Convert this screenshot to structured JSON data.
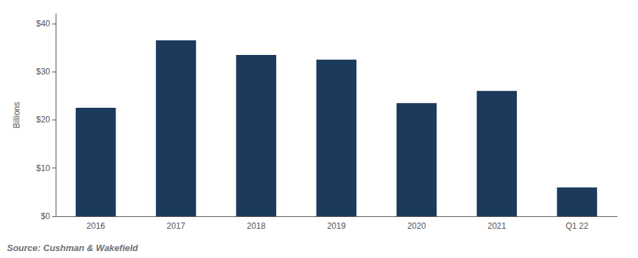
{
  "chart_data": {
    "type": "bar",
    "categories": [
      "2016",
      "2017",
      "2018",
      "2019",
      "2020",
      "2021",
      "Q1 22"
    ],
    "values": [
      22.5,
      36.5,
      33.5,
      32.5,
      23.5,
      26.0,
      6.0
    ],
    "color": "#1b3a5c",
    "ylabel": "Billions",
    "ylim": [
      0,
      42
    ],
    "yticks": [
      {
        "value": 0,
        "label": "$0"
      },
      {
        "value": 10,
        "label": "$10"
      },
      {
        "value": 20,
        "label": "$20"
      },
      {
        "value": 30,
        "label": "$30"
      },
      {
        "value": 40,
        "label": "$40"
      }
    ],
    "annotations": [
      "Source: Cushman & Wakefield"
    ],
    "grid": false
  }
}
